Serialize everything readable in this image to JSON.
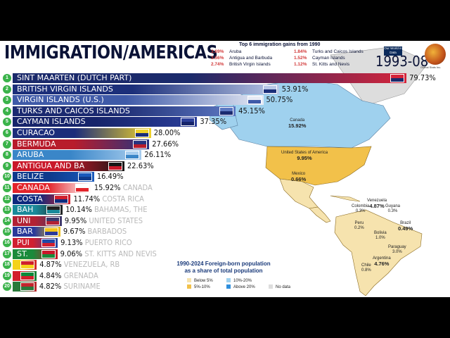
{
  "header": {
    "title": "IMMIGRATION/AMERICAS",
    "date": "1993-08",
    "owid_badge": "Our World in Data",
    "logo_text": "Global Stats Inc."
  },
  "top_gains": {
    "title": "Top 6 immigration gains from 1990",
    "items": [
      {
        "pct": "3.69%",
        "name": "Aruba"
      },
      {
        "pct": "3.56%",
        "name": "Antigua and Barbuda"
      },
      {
        "pct": "2.74%",
        "name": "British Virgin Islands"
      },
      {
        "pct": "1.84%",
        "name": "Turks and Caicos Islands"
      },
      {
        "pct": "1.52%",
        "name": "Cayman Islands"
      },
      {
        "pct": "1.12%",
        "name": "St. Kitts and Nevis"
      }
    ]
  },
  "chart_data": {
    "type": "bar",
    "orientation": "horizontal",
    "title": "IMMIGRATION/AMERICAS",
    "unit": "%",
    "xlim": [
      0,
      80
    ],
    "ranks": [
      "1",
      "2",
      "3",
      "4",
      "5",
      "6",
      "7",
      "8",
      "9",
      "10",
      "11",
      "12",
      "13",
      "14",
      "15",
      "16",
      "17",
      "18",
      "19",
      "20"
    ],
    "categories": [
      "SINT MAARTEN (DUTCH PART)",
      "BRITISH VIRGIN ISLANDS",
      "VIRGIN ISLANDS (U.S.)",
      "TURKS AND CAICOS ISLANDS",
      "CAYMAN ISLANDS",
      "CURACAO",
      "BERMUDA",
      "ARUBA",
      "ANTIGUA AND BA",
      "BELIZE",
      "CANADA",
      "COSTA",
      "BAH",
      "UNI",
      "BAR",
      "PUI",
      "ST.",
      "",
      "",
      ""
    ],
    "outside_labels": [
      "",
      "",
      "",
      "",
      "",
      "",
      "",
      "",
      "",
      "",
      "CANADA",
      "COSTA RICA",
      "BAHAMAS, THE",
      "UNITED STATES",
      "BARBADOS",
      "PUERTO RICO",
      "ST. KITTS AND NEVIS",
      "VENEZUELA, RB",
      "GRENADA",
      "SURINAME"
    ],
    "value_labels": [
      "79.73%",
      "53.91%",
      "50.75%",
      "45.15%",
      "37.35%",
      "28.00%",
      "27.66%",
      "26.11%",
      "22.63%",
      "16.49%",
      "15.92%",
      "11.74%",
      "10.14%",
      "9.95%",
      "9.67%",
      "9.13%",
      "9.06%",
      "4.87%",
      "4.84%",
      "4.82%"
    ],
    "values": [
      79.73,
      53.91,
      50.75,
      45.15,
      37.35,
      28.0,
      27.66,
      26.11,
      22.63,
      16.49,
      15.92,
      11.74,
      10.14,
      9.95,
      9.67,
      9.13,
      9.06,
      4.87,
      4.84,
      4.82
    ],
    "bar_colors": [
      [
        "#1b2a6b",
        "#d5243a"
      ],
      [
        "#1c2f7a",
        "#b8c6e6"
      ],
      [
        "#3f5aa8",
        "#e7ebf5"
      ],
      [
        "#1b2a70",
        "#5d78c2"
      ],
      [
        "#16246a",
        "#2c3f9a"
      ],
      [
        "#1c2d7a",
        "#f0d22a"
      ],
      [
        "#b81c2c",
        "#27337f"
      ],
      [
        "#3a86c8",
        "#a8cdee"
      ],
      [
        "#c9182a",
        "#161616"
      ],
      [
        "#0e3a8c",
        "#1a5abc"
      ],
      [
        "#e2242b",
        "#ffffff"
      ],
      [
        "#0e2a7e",
        "#d21f2c"
      ],
      [
        "#1a8a9a",
        "#222"
      ],
      [
        "#b22234",
        "#3c3b6e"
      ],
      [
        "#2a3a9a",
        "#f2c31a"
      ],
      [
        "#d02030",
        "#1f4aa8"
      ],
      [
        "#1a8a3a",
        "#c9182a"
      ],
      [
        "#f4d21a",
        "#cf1f2c"
      ],
      [
        "#d21f2c",
        "#0c8a3a"
      ],
      [
        "#2a7a3a",
        "#c3242d"
      ]
    ]
  },
  "map": {
    "legend_title": "1990-2024 Foreign-born population as a share of total population",
    "legend": [
      {
        "label": "Below 5%",
        "color": "#f6e3ae"
      },
      {
        "label": "5%-10%",
        "color": "#f2c14a"
      },
      {
        "label": "10%-20%",
        "color": "#9fd1ee"
      },
      {
        "label": "Above 20%",
        "color": "#2f8fdd"
      },
      {
        "label": "No data",
        "color": "#dddddd"
      }
    ],
    "labels": [
      {
        "name": "Canada",
        "value": "15.92%"
      },
      {
        "name": "United States of America",
        "value": "9.95%"
      },
      {
        "name": "Mexico",
        "value": "0.66%"
      },
      {
        "name": "Venezuela",
        "value": "4.87%"
      },
      {
        "name": "Colombia",
        "value": "0.3%"
      },
      {
        "name": "Guyana",
        "value": "0.3%"
      },
      {
        "name": "Peru",
        "value": "0.2%"
      },
      {
        "name": "Brazil",
        "value": "0.49%"
      },
      {
        "name": "Bolivia",
        "value": "1.0%"
      },
      {
        "name": "Chile",
        "value": "0.8%"
      },
      {
        "name": "Argentina",
        "value": "4.76%"
      },
      {
        "name": "Paraguay",
        "value": "3.0%"
      }
    ]
  }
}
